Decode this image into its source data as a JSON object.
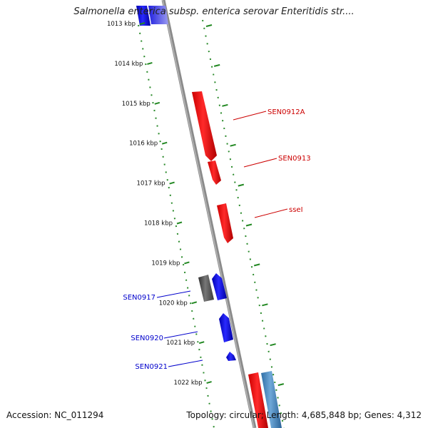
{
  "title": "Salmonella enterica subsp. enterica serovar Enteritidis str....",
  "footer": {
    "accession": "Accession: NC_011294",
    "summary": "Topology: circular; Length: 4,685,848 bp; Genes: 4,312"
  },
  "colors": {
    "forward_gene": "#ff0000",
    "reverse_gene": "#0000ff",
    "other_gene": "#555555",
    "light_blue_gene": "#4f8fc4",
    "scale_ticks": "#228822",
    "backbone": "#888888",
    "forward_label": "#cc0000",
    "reverse_label": "#0000cc"
  },
  "scale_labels": [
    "1013 kbp",
    "1014 kbp",
    "1015 kbp",
    "1016 kbp",
    "1017 kbp",
    "1018 kbp",
    "1019 kbp",
    "1020 kbp",
    "1021 kbp",
    "1022 kbp"
  ],
  "gene_labels": {
    "forward": [
      "SEN0912A",
      "SEN0913",
      "sseI"
    ],
    "reverse": [
      "SEN0917",
      "SEN0920",
      "SEN0921"
    ]
  }
}
